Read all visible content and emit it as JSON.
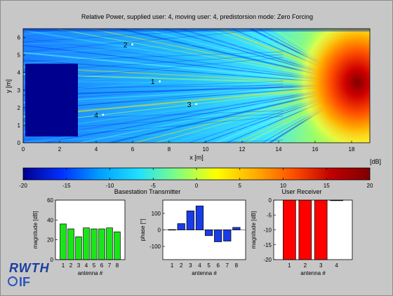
{
  "figure": {
    "title": "Relative Power, supplied user: 4, moving user: 4, predistorsion mode: Zero Forcing"
  },
  "heatmap": {
    "xlabel": "x [m]",
    "ylabel": "y [m]",
    "xlim": [
      0,
      19
    ],
    "ylim": [
      0,
      6.5
    ],
    "x_ticks": [
      "0",
      "2",
      "4",
      "6",
      "8",
      "10",
      "12",
      "14",
      "16",
      "18"
    ],
    "y_ticks": [
      "0",
      "1",
      "2",
      "3",
      "4",
      "5",
      "6"
    ],
    "user_markers": [
      {
        "label": "1",
        "x": 7.1,
        "y": 3.5
      },
      {
        "label": "2",
        "x": 5.6,
        "y": 5.6
      },
      {
        "label": "3",
        "x": 9.1,
        "y": 2.2
      },
      {
        "label": "4",
        "x": 4.0,
        "y": 1.6
      }
    ]
  },
  "colorbar": {
    "unit_label": "[dB]",
    "ticks": [
      "-20",
      "-15",
      "-10",
      "-5",
      "0",
      "5",
      "10",
      "15",
      "20"
    ],
    "range": [
      -20,
      20
    ],
    "colors": [
      "#000090",
      "#0030ff",
      "#00a0ff",
      "#20e0ff",
      "#80ff80",
      "#ffff00",
      "#ffb000",
      "#ff5000",
      "#c00000",
      "#800000"
    ]
  },
  "labels": {
    "basestation": "Basestation Transmitter",
    "user_receiver": "User Receiver"
  },
  "logo": {
    "line1": "RWTH",
    "line2": "IF"
  },
  "chart_data": [
    {
      "type": "heatmap",
      "title": "Relative Power, supplied user: 4, moving user: 4, predistorsion mode: Zero Forcing",
      "xlabel": "x [m]",
      "ylabel": "y [m]",
      "xlim": [
        0,
        19
      ],
      "ylim": [
        0,
        6.5
      ],
      "zlim": [
        -20,
        20
      ],
      "z_unit": "[dB]"
    },
    {
      "type": "bar",
      "categories": [
        "1",
        "2",
        "3",
        "4",
        "5",
        "6",
        "7",
        "8"
      ],
      "values": [
        36,
        31,
        23,
        32,
        31,
        31,
        32,
        28
      ],
      "xlabel": "antenna #",
      "ylabel": "magnitude [dB]",
      "ylim": [
        0,
        60
      ],
      "yticks": [
        "0",
        "20",
        "40",
        "60"
      ],
      "color": "#19e619"
    },
    {
      "type": "bar",
      "categories": [
        "1",
        "2",
        "3",
        "4",
        "5",
        "6",
        "7",
        "8"
      ],
      "values": [
        2,
        38,
        115,
        145,
        -35,
        -72,
        -68,
        15
      ],
      "xlabel": "antenna #",
      "ylabel": "phase [°]",
      "ylim": [
        -180,
        180
      ],
      "yticks": [
        "-100",
        "0",
        "100"
      ],
      "color": "#1a3ce6"
    },
    {
      "type": "bar",
      "categories": [
        "1",
        "2",
        "3",
        "4"
      ],
      "values": [
        -20,
        -20,
        -20,
        0
      ],
      "xlabel": "antenna #",
      "ylabel": "magnitude [dB]",
      "ylim": [
        -20,
        0
      ],
      "yticks": [
        "-20",
        "-15",
        "-10",
        "-5",
        "0"
      ],
      "color": "#ff0000"
    }
  ]
}
